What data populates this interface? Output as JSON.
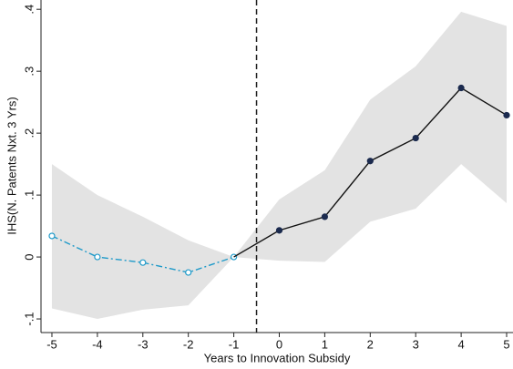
{
  "chart_data": {
    "type": "line",
    "x_label": "Years to Innovation Subsidy",
    "y_label": "IHS(N. Patents Nxt. 3 Yrs)",
    "xlim": [
      -5.24,
      5.14
    ],
    "ylim": [
      -0.122,
      0.415
    ],
    "xticks": [
      -5,
      -4,
      -3,
      -2,
      -1,
      0,
      1,
      2,
      3,
      4,
      5
    ],
    "yticks": [
      {
        "value": -0.1,
        "label": "-.1"
      },
      0,
      {
        "value": 0.1,
        "label": ".1"
      },
      {
        "value": 0.2,
        "label": ".2"
      },
      {
        "value": 0.3,
        "label": ".3"
      },
      {
        "value": 0.4,
        "label": ".4"
      }
    ],
    "vline": -0.5,
    "band": {
      "color": "#e3e3e3",
      "x": [
        -5,
        -4,
        -3,
        -2,
        -1,
        0,
        1,
        2,
        3,
        4,
        5
      ],
      "lower": [
        -0.083,
        -0.1,
        -0.085,
        -0.078,
        0,
        -0.006,
        -0.008,
        0.057,
        0.078,
        0.15,
        0.087
      ],
      "upper": [
        0.15,
        0.1,
        0.065,
        0.027,
        0,
        0.093,
        0.14,
        0.254,
        0.308,
        0.396,
        0.373
      ]
    },
    "series": [
      {
        "color": "#1f9ac9",
        "dashed": true,
        "marker": "hollow",
        "x": [
          -5,
          -4,
          -3,
          -2,
          -1
        ],
        "values": [
          0.034,
          0,
          -0.009,
          -0.025,
          0
        ]
      },
      {
        "color": "#111111",
        "marker_color": "#1b2a4e",
        "dashed": false,
        "marker": "filled",
        "join_previous": true,
        "x": [
          0,
          1,
          2,
          3,
          4,
          5
        ],
        "values": [
          0.043,
          0.065,
          0.155,
          0.192,
          0.273,
          0.229
        ]
      }
    ]
  }
}
